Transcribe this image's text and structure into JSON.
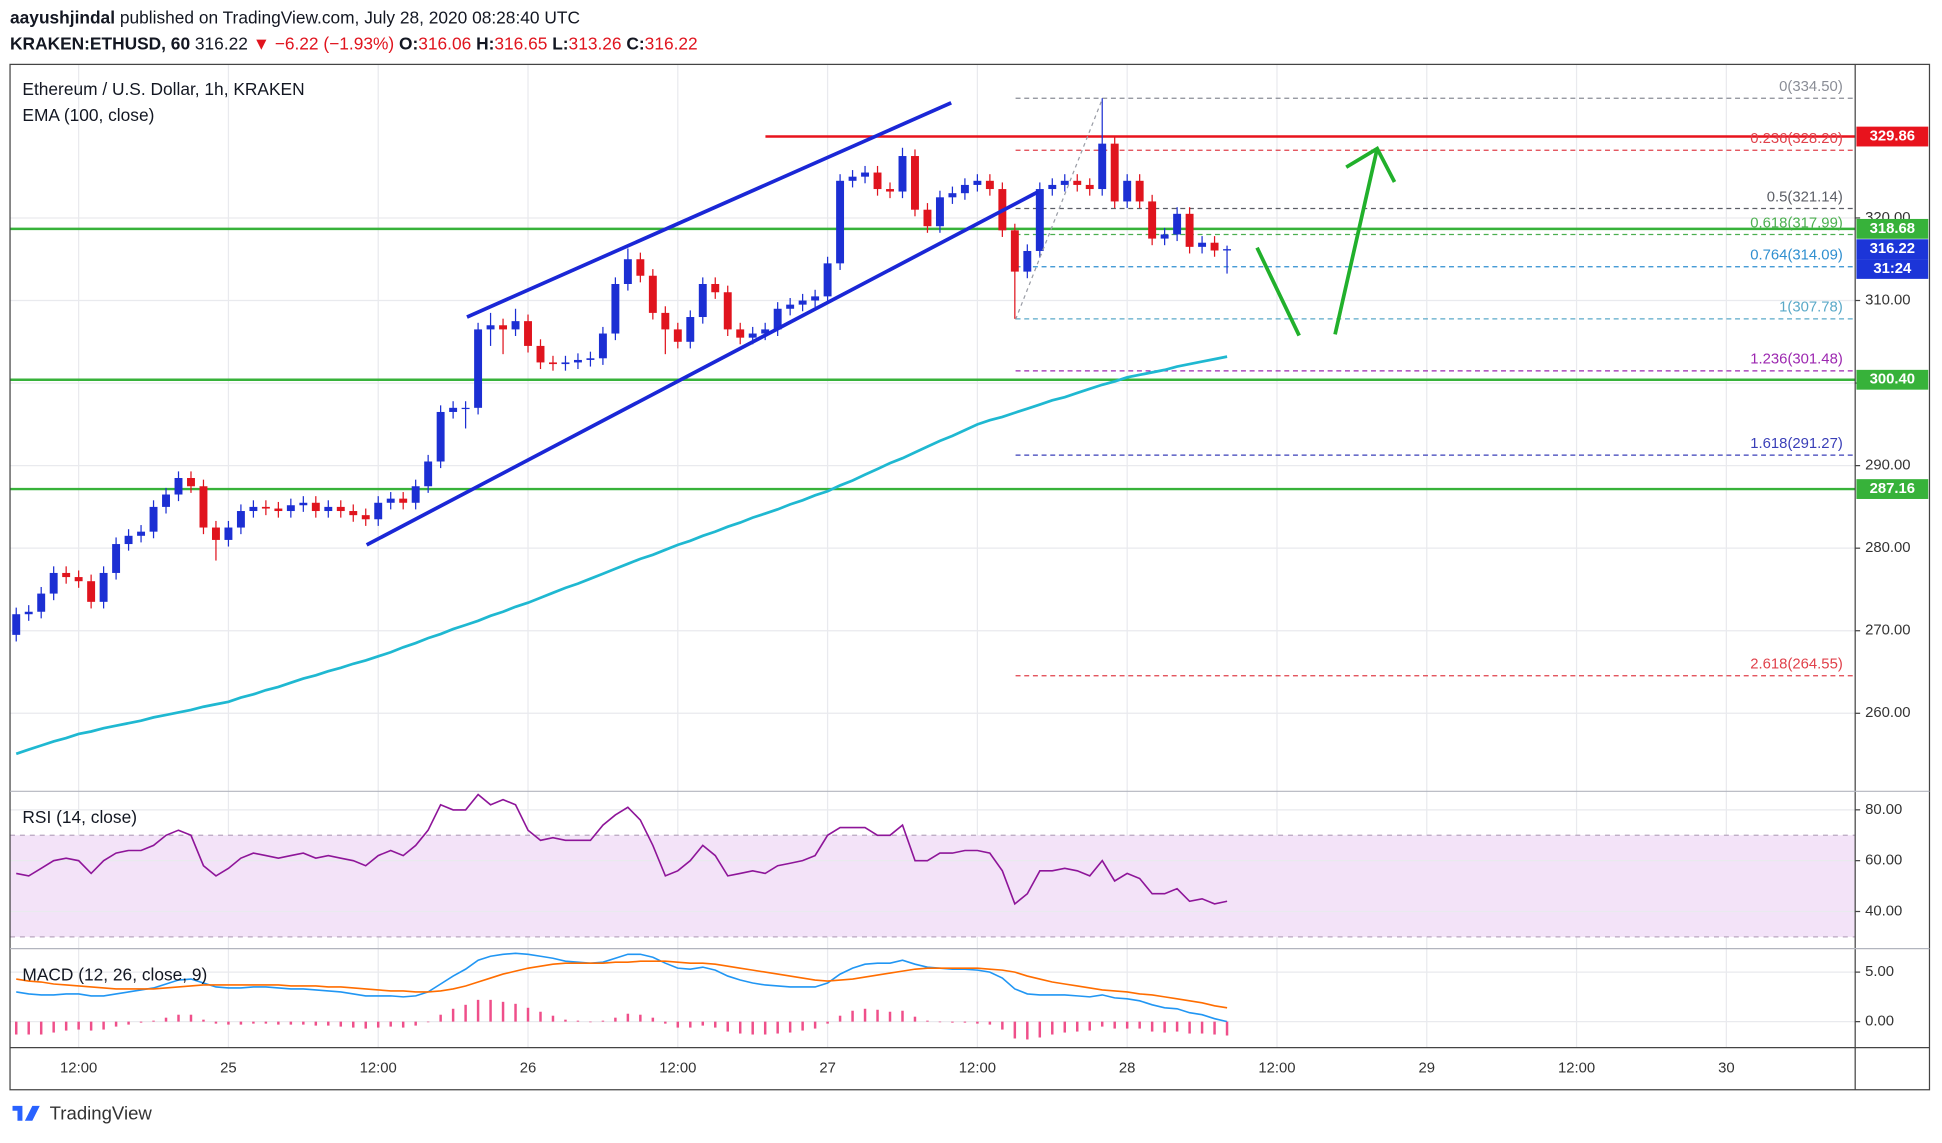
{
  "header": {
    "author": "aayushjindal",
    "published": "published on TradingView.com, July 28, 2020 08:28:40 UTC",
    "symbol": "KRAKEN:ETHUSD, 60",
    "change": "▼ −6.22 (−1.93%)",
    "ohlc_labels": [
      "O:",
      "H:",
      "L:",
      "C:"
    ]
  },
  "footer": {
    "brand": "TradingView"
  },
  "chart_data": [
    {
      "type": "candlestick",
      "title": "Ethereum / U.S. Dollar, 1h, KRAKEN",
      "categories": [
        null,
        null,
        null,
        null,
        null,
        "12:00",
        null,
        null,
        null,
        null,
        null,
        null,
        null,
        null,
        null,
        null,
        null,
        "25",
        null,
        null,
        null,
        null,
        null,
        null,
        null,
        null,
        null,
        null,
        null,
        "12:00",
        null,
        null,
        null,
        null,
        null,
        null,
        null,
        null,
        null,
        null,
        null,
        "26",
        null,
        null,
        null,
        null,
        null,
        null,
        null,
        null,
        null,
        null,
        null,
        "12:00",
        null,
        null,
        null,
        null,
        null,
        null,
        null,
        null,
        null,
        null,
        null,
        "27",
        null,
        null,
        null,
        null,
        null,
        null,
        null,
        null,
        null,
        null,
        null,
        "12:00",
        null,
        null,
        null,
        null,
        null,
        null,
        null,
        null,
        null,
        null,
        null,
        "28",
        null,
        null,
        null,
        null,
        null,
        null,
        null,
        null
      ],
      "x_future_labels": [
        "12:00",
        "29",
        "12:00",
        "30"
      ],
      "open": [
        269.5,
        272,
        272.3,
        274.5,
        277,
        276.5,
        276,
        273.5,
        277,
        280.5,
        281.5,
        282,
        285,
        286.5,
        288.5,
        287.5,
        282.5,
        281,
        282.5,
        284.5,
        285,
        284.8,
        284.5,
        285.2,
        285.5,
        284.5,
        285,
        284.5,
        284,
        283.5,
        285.5,
        286,
        285.5,
        287.5,
        290.5,
        296.5,
        297,
        297,
        306.5,
        307,
        306.5,
        307.5,
        304.5,
        302.5,
        302.3,
        302.5,
        302.8,
        303,
        306,
        312,
        315,
        313,
        308.5,
        306.5,
        305,
        308,
        312,
        311,
        306.5,
        305.5,
        306,
        306.5,
        309,
        309.5,
        310,
        310.5,
        314.5,
        324.5,
        325,
        325.5,
        323.5,
        323.2,
        327.5,
        321,
        319,
        322.5,
        323,
        324,
        324.5,
        323.5,
        318.5,
        313.5,
        316,
        323.5,
        324,
        324.5,
        324,
        323.5,
        329,
        322,
        324.5,
        322,
        317.5,
        318,
        320.5,
        316.5,
        317,
        316.06
      ],
      "high": [
        272.8,
        273.1,
        275.3,
        277.8,
        277.8,
        277.3,
        276.8,
        277.8,
        281.3,
        282.3,
        282.8,
        285.8,
        287.3,
        289.3,
        289.3,
        288.3,
        283.3,
        283.3,
        285.3,
        285.8,
        285.8,
        285.6,
        286,
        286.3,
        286.3,
        285.8,
        285.8,
        285.3,
        284.8,
        286.3,
        286.8,
        286.8,
        288.3,
        291.3,
        297.3,
        297.8,
        297.8,
        307.3,
        308.5,
        307.8,
        309,
        308.3,
        305.3,
        303.3,
        303.3,
        303.6,
        303.8,
        306.8,
        312.8,
        316.3,
        315.8,
        313.8,
        309.3,
        307.3,
        308.8,
        312.8,
        312.8,
        311.8,
        307.3,
        306.8,
        307.3,
        309.8,
        310.3,
        310.8,
        311.3,
        315.3,
        325.3,
        325.8,
        326.3,
        326.3,
        324.3,
        328.5,
        328.3,
        321.8,
        323.3,
        323.8,
        324.8,
        325.3,
        325.3,
        324.3,
        319.3,
        316.8,
        324.3,
        324.8,
        325.3,
        325.3,
        324.8,
        334.5,
        329.8,
        325.3,
        325.3,
        322.8,
        318.8,
        321.3,
        321.3,
        317.8,
        317.8,
        316.65
      ],
      "low": [
        268.7,
        271.2,
        271.5,
        273.7,
        275.7,
        275.2,
        272.7,
        272.7,
        276.2,
        279.7,
        280.7,
        281.2,
        284.2,
        285.7,
        286.7,
        281.7,
        278.5,
        280.2,
        281.7,
        283.7,
        284,
        283.7,
        283.7,
        284.4,
        283.7,
        283.7,
        283.7,
        283.2,
        282.7,
        282.7,
        284.7,
        284.7,
        284.7,
        286.7,
        289.7,
        295.7,
        294.5,
        296.2,
        304.5,
        303.5,
        305.7,
        303.7,
        301.7,
        301.5,
        301.5,
        301.7,
        302,
        302.2,
        305.2,
        311.2,
        312.2,
        307.7,
        303.5,
        304.2,
        304.2,
        307.2,
        310.2,
        305.7,
        304.7,
        304.7,
        305.2,
        305.7,
        308.2,
        308.7,
        309.2,
        309.7,
        313.7,
        323.7,
        324.2,
        322.7,
        322.4,
        322.4,
        320.2,
        318.2,
        318.2,
        321.7,
        322.2,
        323.2,
        322.7,
        317.7,
        307.78,
        312.7,
        315.2,
        322.7,
        323.2,
        323.2,
        322.7,
        322.7,
        321.2,
        321.2,
        321.2,
        316.7,
        316.7,
        317.2,
        315.7,
        315.7,
        315.3,
        313.26
      ],
      "close": [
        272,
        272.3,
        274.5,
        277,
        276.5,
        276,
        273.5,
        277,
        280.5,
        281.5,
        282,
        285,
        286.5,
        288.5,
        287.5,
        282.5,
        281,
        282.5,
        284.5,
        285,
        284.8,
        284.5,
        285.2,
        285.5,
        284.5,
        285,
        284.5,
        284,
        283.5,
        285.5,
        286,
        285.5,
        287.5,
        290.5,
        296.5,
        297,
        297,
        306.5,
        307,
        306.5,
        307.5,
        304.5,
        302.5,
        302.3,
        302.5,
        302.8,
        303,
        306,
        312,
        315,
        313,
        308.5,
        306.5,
        305,
        308,
        312,
        311,
        306.5,
        305.5,
        306,
        306.5,
        309,
        309.5,
        310,
        310.5,
        314.5,
        324.5,
        325,
        325.5,
        323.5,
        323.2,
        327.5,
        321,
        319,
        322.5,
        323,
        324,
        324.5,
        323.5,
        318.5,
        313.5,
        316,
        323.5,
        324,
        324.5,
        324,
        323.5,
        329,
        322,
        324.5,
        322,
        317.5,
        318,
        320.5,
        316.5,
        317,
        316.06,
        316.22
      ],
      "up_color": "#1c2fd3",
      "down_color": "#e0141e",
      "series": [
        {
          "name": "EMA (100, close)",
          "color": "#1fb8d1",
          "values": [
            255.1,
            255.6,
            256.1,
            256.6,
            257.0,
            257.5,
            257.8,
            258.2,
            258.5,
            258.8,
            259.1,
            259.5,
            259.8,
            260.1,
            260.4,
            260.8,
            261.1,
            261.4,
            261.9,
            262.3,
            262.8,
            263.2,
            263.7,
            264.2,
            264.6,
            265.1,
            265.5,
            266.0,
            266.4,
            266.9,
            267.4,
            268.0,
            268.5,
            269.1,
            269.6,
            270.2,
            270.7,
            271.2,
            271.8,
            272.3,
            272.9,
            273.4,
            274.0,
            274.6,
            275.2,
            275.7,
            276.3,
            276.9,
            277.5,
            278.1,
            278.7,
            279.2,
            279.8,
            280.4,
            280.9,
            281.5,
            282.0,
            282.6,
            283.1,
            283.7,
            284.2,
            284.7,
            285.3,
            285.8,
            286.4,
            286.9,
            287.6,
            288.2,
            288.9,
            289.6,
            290.3,
            290.9,
            291.6,
            292.3,
            293.0,
            293.6,
            294.3,
            295.0,
            295.5,
            295.9,
            296.4,
            296.9,
            297.4,
            297.9,
            298.3,
            298.8,
            299.3,
            299.8,
            300.2,
            300.7,
            301.0,
            301.3,
            301.6,
            302.0,
            302.3,
            302.6,
            302.9,
            303.2
          ]
        }
      ],
      "ylim": [
        250.7,
        338.6
      ],
      "yticks": [
        {
          "value": 260,
          "label": "260.00"
        },
        {
          "value": 270,
          "label": "270.00"
        },
        {
          "value": 280,
          "label": "280.00"
        },
        {
          "value": 290,
          "label": "290.00"
        },
        {
          "value": 300,
          "label": "300.00"
        },
        {
          "value": 310,
          "label": "310.00"
        },
        {
          "value": 320,
          "label": "320.00"
        }
      ],
      "grid": true,
      "hlines": [
        {
          "value": 329.86,
          "label": "329.86",
          "color": "#e8131d"
        },
        {
          "value": 318.68,
          "label": "318.68",
          "color": "#37b23a"
        },
        {
          "value": 300.4,
          "label": "300.40",
          "color": "#37b23a"
        },
        {
          "value": 287.16,
          "label": "287.16",
          "color": "#37b23a"
        }
      ],
      "fib": [
        {
          "price": 334.5,
          "label": "0(334.50)",
          "color": "#8a8d96"
        },
        {
          "price": 328.2,
          "label": "0.236(328.20)",
          "color": "#e0414b"
        },
        {
          "price": 321.14,
          "label": "0.5(321.14)",
          "color": "#5b5e66"
        },
        {
          "price": 317.99,
          "label": "0.618(317.99)",
          "color": "#4caf50"
        },
        {
          "price": 314.09,
          "label": "0.764(314.09)",
          "color": "#2f8fd0"
        },
        {
          "price": 307.78,
          "label": "1(307.78)",
          "color": "#5aa9c8"
        },
        {
          "price": 301.48,
          "label": "1.236(301.48)",
          "color": "#9c27b0"
        },
        {
          "price": 291.27,
          "label": "1.618(291.27)",
          "color": "#3a3fb8"
        },
        {
          "price": 264.55,
          "label": "2.618(264.55)",
          "color": "#e0414b"
        }
      ],
      "last_color": "#1c35d8",
      "countdown": "31:24"
    },
    {
      "type": "line",
      "title": "RSI (14, close)",
      "series": [
        {
          "color": "#8e1599",
          "values": [
            55,
            54,
            57,
            60,
            61,
            60,
            55,
            60,
            63,
            64,
            64,
            66,
            70,
            72,
            70,
            58,
            54,
            57,
            61,
            63,
            62,
            61,
            62,
            63,
            61,
            62,
            61,
            60,
            58,
            62,
            64,
            62,
            66,
            72,
            82,
            80,
            80,
            86,
            82,
            84,
            82,
            72,
            68,
            69,
            68,
            68,
            68,
            74,
            78,
            81,
            76,
            66,
            54,
            56,
            60,
            66,
            62,
            54,
            55,
            56,
            55,
            58,
            59,
            60,
            62,
            70,
            73,
            73,
            73,
            70,
            70,
            74,
            60,
            60,
            63,
            63,
            64,
            64,
            63,
            56,
            43,
            47,
            56,
            56,
            57,
            56,
            54,
            60,
            52,
            55,
            53,
            47,
            47,
            49,
            44,
            45,
            43,
            44
          ]
        }
      ],
      "ylim": [
        25.9,
        86.8
      ],
      "yticks": [
        {
          "value": 40,
          "label": "40.00"
        },
        {
          "value": 60,
          "label": "60.00"
        },
        {
          "value": 80,
          "label": "80.00"
        }
      ],
      "grid": true,
      "band": [
        30,
        70
      ],
      "band_color": "#f3e3f8"
    },
    {
      "type": "line",
      "title": "MACD (12, 26, close, 9)",
      "series": [
        {
          "color": "#2196f3",
          "values": [
            3.0,
            2.8,
            2.7,
            2.7,
            2.8,
            2.8,
            2.6,
            2.6,
            2.8,
            3.0,
            3.2,
            3.4,
            3.8,
            4.2,
            4.3,
            3.9,
            3.5,
            3.4,
            3.4,
            3.5,
            3.5,
            3.4,
            3.3,
            3.3,
            3.2,
            3.1,
            3.0,
            2.8,
            2.6,
            2.6,
            2.6,
            2.5,
            2.6,
            3.0,
            3.8,
            4.6,
            5.3,
            6.2,
            6.6,
            6.8,
            6.9,
            6.8,
            6.6,
            6.4,
            6.1,
            6.0,
            5.9,
            6.0,
            6.4,
            6.8,
            6.8,
            6.5,
            5.9,
            5.4,
            5.3,
            5.5,
            5.2,
            4.6,
            4.2,
            3.9,
            3.7,
            3.6,
            3.5,
            3.5,
            3.5,
            3.9,
            4.8,
            5.4,
            5.8,
            5.9,
            5.9,
            6.2,
            5.8,
            5.5,
            5.4,
            5.3,
            5.3,
            5.2,
            5.0,
            4.4,
            3.3,
            2.8,
            2.7,
            2.7,
            2.7,
            2.6,
            2.5,
            2.7,
            2.4,
            2.3,
            2.1,
            1.7,
            1.4,
            1.3,
            0.9,
            0.7,
            0.3,
            0.0
          ]
        },
        {
          "color": "#ff6d00",
          "values": [
            4.3,
            4.1,
            4.0,
            3.8,
            3.7,
            3.6,
            3.5,
            3.4,
            3.3,
            3.3,
            3.3,
            3.3,
            3.4,
            3.5,
            3.6,
            3.7,
            3.7,
            3.7,
            3.7,
            3.7,
            3.7,
            3.7,
            3.6,
            3.6,
            3.6,
            3.5,
            3.5,
            3.4,
            3.3,
            3.2,
            3.1,
            3.1,
            3.0,
            3.0,
            3.1,
            3.3,
            3.6,
            4.0,
            4.4,
            4.8,
            5.1,
            5.4,
            5.6,
            5.8,
            5.9,
            5.9,
            5.9,
            5.9,
            6.0,
            6.0,
            6.1,
            6.1,
            6.1,
            6.0,
            5.9,
            5.9,
            5.8,
            5.6,
            5.4,
            5.2,
            5.0,
            4.8,
            4.6,
            4.4,
            4.2,
            4.1,
            4.2,
            4.3,
            4.5,
            4.7,
            4.9,
            5.1,
            5.3,
            5.4,
            5.4,
            5.4,
            5.4,
            5.4,
            5.3,
            5.2,
            5.0,
            4.6,
            4.3,
            4.0,
            3.8,
            3.6,
            3.4,
            3.2,
            3.1,
            3.0,
            2.8,
            2.7,
            2.5,
            2.3,
            2.1,
            1.9,
            1.6,
            1.4
          ]
        },
        {
          "color": "#ef4f8a",
          "style": "histogram",
          "values": [
            -1.3,
            -1.3,
            -1.3,
            -1.1,
            -0.9,
            -0.8,
            -0.9,
            -0.8,
            -0.5,
            -0.3,
            -0.1,
            0.1,
            0.4,
            0.7,
            0.7,
            0.2,
            -0.2,
            -0.3,
            -0.3,
            -0.2,
            -0.2,
            -0.3,
            -0.3,
            -0.3,
            -0.4,
            -0.4,
            -0.5,
            -0.6,
            -0.7,
            -0.6,
            -0.5,
            -0.6,
            -0.4,
            0.0,
            0.7,
            1.3,
            1.7,
            2.2,
            2.2,
            2.0,
            1.8,
            1.4,
            1.0,
            0.6,
            0.2,
            0.1,
            0.0,
            0.1,
            0.4,
            0.8,
            0.7,
            0.4,
            -0.2,
            -0.6,
            -0.6,
            -0.4,
            -0.6,
            -1.0,
            -1.2,
            -1.3,
            -1.3,
            -1.2,
            -1.1,
            -0.9,
            -0.7,
            -0.2,
            0.6,
            1.1,
            1.3,
            1.2,
            1.0,
            1.1,
            0.5,
            0.1,
            0.0,
            -0.1,
            -0.1,
            -0.2,
            -0.3,
            -0.8,
            -1.7,
            -1.8,
            -1.6,
            -1.3,
            -1.1,
            -1.0,
            -0.9,
            -0.5,
            -0.7,
            -0.7,
            -0.7,
            -1.0,
            -1.1,
            -1.0,
            -1.2,
            -1.2,
            -1.3,
            -1.4
          ]
        }
      ],
      "ylim": [
        -2.5,
        7.25
      ],
      "yticks": [
        {
          "value": 0,
          "label": "0.00"
        },
        {
          "value": 5,
          "label": "5.00"
        }
      ],
      "grid": true
    }
  ]
}
